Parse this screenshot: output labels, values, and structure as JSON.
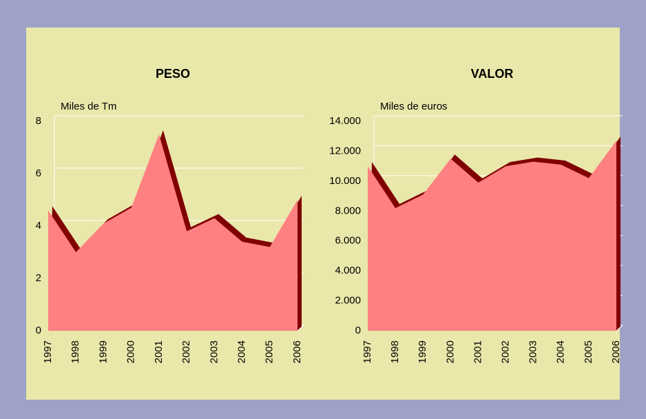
{
  "chart_data": [
    {
      "type": "area",
      "title": "PESO",
      "ylabel": "Miles de Tm",
      "categories": [
        "1997",
        "1998",
        "1999",
        "2000",
        "2001",
        "2002",
        "2003",
        "2004",
        "2005",
        "2006"
      ],
      "values": [
        4.6,
        3.0,
        4.1,
        4.7,
        7.5,
        3.8,
        4.3,
        3.4,
        3.2,
        5.0
      ],
      "color": "#ff8080",
      "shade": "#800000",
      "ylim": [
        0,
        8
      ],
      "yticks": [
        0,
        2,
        4,
        6,
        8
      ],
      "grid": true
    },
    {
      "type": "area",
      "title": "VALOR",
      "ylabel": "Miles de euros",
      "categories": [
        "1997",
        "1998",
        "1999",
        "2000",
        "2001",
        "2002",
        "2003",
        "2004",
        "2005",
        "2006"
      ],
      "values": [
        11000,
        8200,
        9100,
        11500,
        9900,
        11000,
        11300,
        11100,
        10200,
        12700
      ],
      "color": "#ff8080",
      "shade": "#800000",
      "ylim": [
        0,
        14000
      ],
      "yticks": [
        0,
        {
          "value": 2000,
          "label": "2.000"
        },
        {
          "value": 4000,
          "label": "4.000"
        },
        {
          "value": 6000,
          "label": "6.000"
        },
        {
          "value": 8000,
          "label": "8.000"
        },
        {
          "value": 10000,
          "label": "10.000"
        },
        {
          "value": 12000,
          "label": "12.000"
        },
        {
          "value": 14000,
          "label": "14.000"
        }
      ],
      "grid": true
    }
  ]
}
